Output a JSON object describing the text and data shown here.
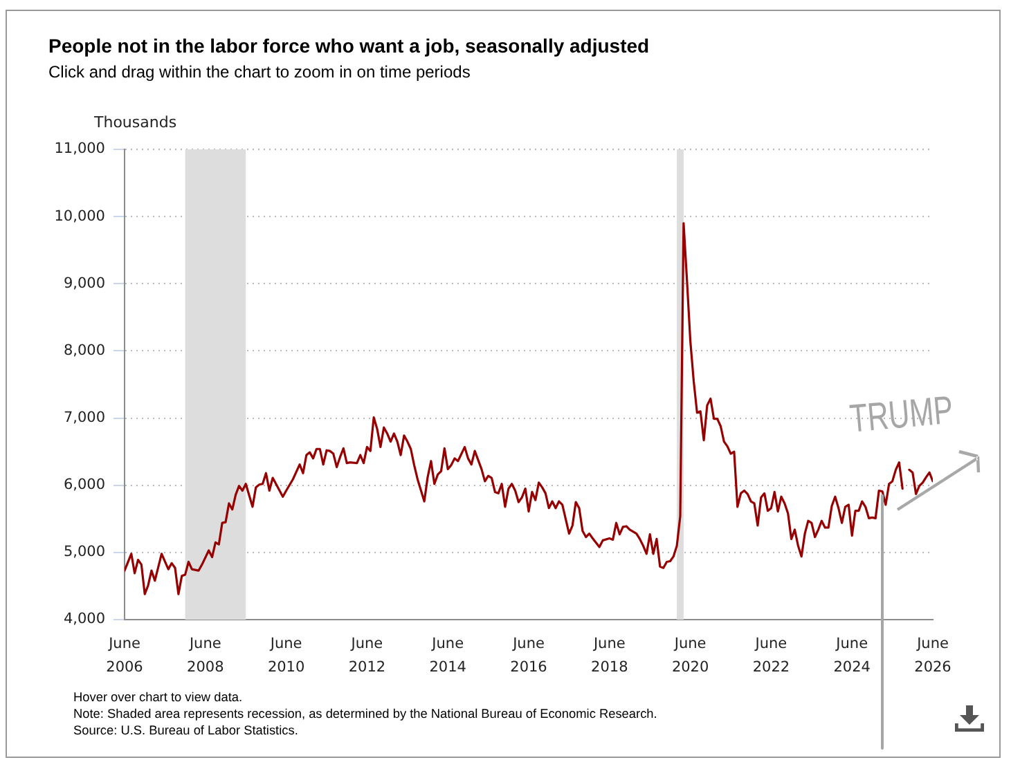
{
  "chart_data": {
    "type": "line",
    "title": "People not in the labor force who want a job, seasonally adjusted",
    "subtitle": "Click and drag within the chart to zoom in on time periods",
    "ylabel": "Thousands",
    "annotations": [
      "Hover over chart to view data.",
      "Note: Shaded area represents recession, as determined by the National Bureau of Economic Research.",
      "Source: U.S. Bureau of Labor Statistics."
    ],
    "x": [
      "2006-06",
      "2006-08",
      "2006-09",
      "2006-10",
      "2006-11",
      "2006-12",
      "2007-01",
      "2007-02",
      "2007-03",
      "2007-05",
      "2007-07",
      "2007-08",
      "2007-09",
      "2007-10",
      "2007-11",
      "2007-12",
      "2008-01",
      "2008-02",
      "2008-04",
      "2008-05",
      "2008-07",
      "2008-08",
      "2008-09",
      "2008-10",
      "2008-11",
      "2008-12",
      "2009-01",
      "2009-02",
      "2009-03",
      "2009-04",
      "2009-05",
      "2009-06",
      "2009-08",
      "2009-09",
      "2009-10",
      "2009-11",
      "2009-12",
      "2010-01",
      "2010-02",
      "2010-05",
      "2010-06",
      "2010-08",
      "2010-10",
      "2010-11",
      "2010-12",
      "2011-01",
      "2011-02",
      "2011-03",
      "2011-04",
      "2011-05",
      "2011-06",
      "2011-07",
      "2011-08",
      "2011-09",
      "2011-10",
      "2011-11",
      "2011-12",
      "2012-01",
      "2012-03",
      "2012-04",
      "2012-05",
      "2012-06",
      "2012-07",
      "2012-08",
      "2012-09",
      "2012-10",
      "2012-11",
      "2012-12",
      "2013-01",
      "2013-02",
      "2013-03",
      "2013-04",
      "2013-05",
      "2013-06",
      "2013-07",
      "2013-08",
      "2013-09",
      "2013-11",
      "2013-12",
      "2014-01",
      "2014-02",
      "2014-03",
      "2014-04",
      "2014-05",
      "2014-06",
      "2014-07",
      "2014-08",
      "2014-09",
      "2014-11",
      "2014-12",
      "2015-01",
      "2015-02",
      "2015-04",
      "2015-05",
      "2015-06",
      "2015-07",
      "2015-08",
      "2015-09",
      "2015-10",
      "2015-11",
      "2015-12",
      "2016-01",
      "2016-02",
      "2016-03",
      "2016-04",
      "2016-05",
      "2016-06",
      "2016-07",
      "2016-08",
      "2016-09",
      "2016-10",
      "2016-11",
      "2016-12",
      "2017-01",
      "2017-02",
      "2017-03",
      "2017-04",
      "2017-06",
      "2017-07",
      "2017-08",
      "2017-09",
      "2017-10",
      "2017-11",
      "2017-12",
      "2018-01",
      "2018-03",
      "2018-04",
      "2018-06",
      "2018-07",
      "2018-08",
      "2018-09",
      "2018-10",
      "2018-11",
      "2018-12",
      "2019-02",
      "2019-03",
      "2019-04",
      "2019-05",
      "2019-06",
      "2019-07",
      "2019-08",
      "2019-09",
      "2019-10",
      "2019-11",
      "2019-12",
      "2020-01",
      "2020-02",
      "2020-03",
      "2020-04",
      "2020-05",
      "2020-06",
      "2020-07",
      "2020-08",
      "2020-09",
      "2020-10",
      "2020-11",
      "2020-12",
      "2021-01",
      "2021-02",
      "2021-03",
      "2021-04",
      "2021-05",
      "2021-06",
      "2021-07",
      "2021-08",
      "2021-09",
      "2021-10",
      "2021-11",
      "2021-12",
      "2022-01",
      "2022-02",
      "2022-03",
      "2022-04",
      "2022-05",
      "2022-06",
      "2022-07",
      "2022-08",
      "2022-09",
      "2022-10",
      "2022-11",
      "2022-12",
      "2023-01",
      "2023-02",
      "2023-03",
      "2023-04",
      "2023-05",
      "2023-06",
      "2023-07",
      "2023-08",
      "2023-09",
      "2023-10",
      "2023-11",
      "2023-12",
      "2024-01",
      "2024-02",
      "2024-03",
      "2024-04",
      "2024-05",
      "2024-06",
      "2024-07",
      "2024-08",
      "2024-09",
      "2024-10",
      "2024-11",
      "2024-12",
      "2025-01",
      "2025-02",
      "2025-03",
      "2025-04",
      "2025-05",
      "2025-06",
      "2025-07",
      "2025-08",
      "2025-09",
      "2025-10",
      "2025-11",
      "2025-12",
      "2026-01",
      "2026-02",
      "2026-03",
      "2026-04",
      "2026-05",
      "2026-06"
    ],
    "values": [
      4730,
      4980,
      4690,
      4890,
      4820,
      4380,
      4510,
      4730,
      4580,
      4980,
      4750,
      4840,
      4770,
      4380,
      4650,
      4670,
      4860,
      4750,
      4730,
      4820,
      5030,
      4930,
      5150,
      5120,
      5440,
      5450,
      5730,
      5640,
      5860,
      5990,
      5920,
      6020,
      5680,
      5970,
      6010,
      6020,
      6180,
      5920,
      6110,
      5830,
      5920,
      6090,
      6310,
      6180,
      6450,
      6490,
      6400,
      6540,
      6540,
      6310,
      6520,
      6510,
      6470,
      6270,
      6420,
      6550,
      6330,
      6340,
      6330,
      6450,
      6330,
      6570,
      6510,
      7010,
      6840,
      6570,
      6860,
      6770,
      6650,
      6770,
      6650,
      6450,
      6740,
      6650,
      6540,
      6300,
      6090,
      5760,
      6120,
      6360,
      6020,
      6160,
      6210,
      6550,
      6240,
      6300,
      6400,
      6360,
      6570,
      6400,
      6310,
      6510,
      6240,
      6060,
      6140,
      6110,
      5900,
      5880,
      6020,
      5680,
      5950,
      6020,
      5920,
      5750,
      5820,
      5950,
      5610,
      5900,
      5780,
      6040,
      5970,
      5880,
      5660,
      5760,
      5660,
      5760,
      5710,
      5280,
      5400,
      5750,
      5660,
      5320,
      5230,
      5280,
      5210,
      5080,
      5180,
      5210,
      5190,
      5440,
      5270,
      5380,
      5390,
      5340,
      5280,
      5200,
      5100,
      4980,
      5270,
      4980,
      5200,
      4790,
      4770,
      4860,
      4870,
      4940,
      5100,
      5540,
      9900,
      9050,
      8150,
      7550,
      7080,
      7100,
      6670,
      7190,
      7290,
      6990,
      6990,
      6880,
      6650,
      6580,
      6470,
      6500,
      5680,
      5880,
      5920,
      5870,
      5760,
      5730,
      5400,
      5820,
      5880,
      5620,
      5660,
      5900,
      5610,
      5830,
      5730,
      5580,
      5200,
      5340,
      5100,
      4940,
      5280,
      5470,
      5440,
      5230,
      5340,
      5470,
      5370,
      5370,
      5690,
      5830,
      5660,
      5440,
      5680,
      5710,
      5250,
      5620,
      5620,
      5760,
      5680,
      5510,
      5520,
      5510,
      5920,
      5910,
      5710,
      6020,
      6060,
      6230,
      6340,
      5950,
      null,
      6230,
      6190,
      5870,
      5990,
      6040,
      6120,
      6190,
      6060
    ],
    "color": "#960000",
    "marker": "none",
    "line_style": "solid",
    "grid": "y",
    "xlim": [
      "2006-06",
      "2026-06"
    ],
    "xticks": [
      {
        "value": "2006-06",
        "label": "June 2006"
      },
      {
        "value": "2008-06",
        "label": "June 2008"
      },
      {
        "value": "2010-06",
        "label": "June 2010"
      },
      {
        "value": "2012-06",
        "label": "June 2012"
      },
      {
        "value": "2014-06",
        "label": "June 2014"
      },
      {
        "value": "2016-06",
        "label": "June 2016"
      },
      {
        "value": "2018-06",
        "label": "June 2018"
      },
      {
        "value": "2020-06",
        "label": "June 2020"
      },
      {
        "value": "2022-06",
        "label": "June 2022"
      },
      {
        "value": "2024-06",
        "label": "June 2024"
      },
      {
        "value": "2026-06",
        "label": "June 2026"
      }
    ],
    "ylim": [
      4000,
      11000
    ],
    "yticks": [
      {
        "value": 4000,
        "label": "4,000"
      },
      {
        "value": 5000,
        "label": "5,000"
      },
      {
        "value": 6000,
        "label": "6,000"
      },
      {
        "value": 7000,
        "label": "7,000"
      },
      {
        "value": 8000,
        "label": "8,000"
      },
      {
        "value": 9000,
        "label": "9,000"
      },
      {
        "value": 10000,
        "label": "10,000"
      },
      {
        "value": 11000,
        "label": "11,000"
      }
    ],
    "bands": [
      {
        "axis": "x",
        "from": "2007-12",
        "to": "2009-06",
        "color": "#dddddd"
      },
      {
        "axis": "x",
        "from": "2020-02",
        "to": "2020-04",
        "color": "#dddddd"
      }
    ],
    "ref_lines": [
      {
        "axis": "x",
        "value": "2025-03",
        "label": "TRUMP",
        "color": "#a6a6a6"
      }
    ]
  }
}
